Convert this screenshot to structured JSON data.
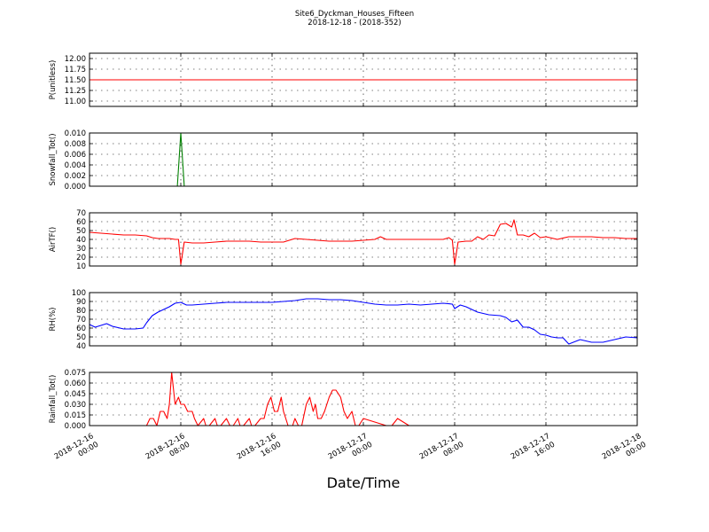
{
  "title": "Site6_Dyckman_Houses_Fifteen",
  "subtitle": "2018-12-18 - (2018-352)",
  "xlabel": "Date/Time",
  "x_ticks": [
    {
      "t": 0,
      "line1": "2018-12-16",
      "line2": "00:00"
    },
    {
      "t": 8,
      "line1": "2018-12-16",
      "line2": "08:00"
    },
    {
      "t": 16,
      "line1": "2018-12-16",
      "line2": "16:00"
    },
    {
      "t": 24,
      "line1": "2018-12-17",
      "line2": "00:00"
    },
    {
      "t": 32,
      "line1": "2018-12-17",
      "line2": "08:00"
    },
    {
      "t": 40,
      "line1": "2018-12-17",
      "line2": "16:00"
    },
    {
      "t": 48,
      "line1": "2018-12-18",
      "line2": "00:00"
    }
  ],
  "chart_data": [
    {
      "type": "line",
      "ylabel": "P(unitless)",
      "ylim": [
        10.875,
        12.125
      ],
      "yticks": [
        "11.00",
        "11.25",
        "11.50",
        "11.75",
        "12.00"
      ],
      "color": "#ff0000",
      "series": [
        {
          "x": [
            0,
            48
          ],
          "y": [
            11.5,
            11.5
          ]
        }
      ]
    },
    {
      "type": "line",
      "ylabel": "Snowfall_Tot()",
      "ylim": [
        0,
        0.01
      ],
      "yticks": [
        "0.000",
        "0.002",
        "0.004",
        "0.006",
        "0.008",
        "0.010"
      ],
      "color": "#008000",
      "series": [
        {
          "x": [
            0,
            7.7,
            8.0,
            8.3,
            48
          ],
          "y": [
            0,
            0,
            0.01,
            0,
            0
          ]
        }
      ]
    },
    {
      "type": "line",
      "ylabel": "AirTF()",
      "ylim": [
        10,
        70
      ],
      "yticks": [
        "10",
        "20",
        "30",
        "40",
        "50",
        "60",
        "70"
      ],
      "color": "#ff0000",
      "series": [
        {
          "x": [
            0,
            1,
            2,
            3,
            4,
            5,
            5.5,
            6,
            7,
            7.5,
            7.8,
            8.0,
            8.3,
            9,
            10,
            11,
            12,
            13,
            14,
            15,
            16,
            17,
            18,
            19,
            20,
            21,
            22,
            23,
            24,
            25,
            25.5,
            26,
            27,
            28,
            29,
            30,
            31,
            31.5,
            31.8,
            32.0,
            32.3,
            33,
            33.5,
            34,
            34.5,
            35,
            35.5,
            36,
            36.5,
            37,
            37.2,
            37.5,
            38,
            38.5,
            39,
            39.5,
            40,
            41,
            42,
            43,
            44,
            45,
            46,
            47,
            48
          ],
          "y": [
            48,
            47,
            46,
            45,
            45,
            44,
            42,
            41,
            41,
            40,
            40,
            12,
            37,
            36,
            36,
            37,
            38,
            38,
            38,
            37,
            37,
            37,
            41,
            40,
            39,
            38,
            38,
            38,
            39,
            40,
            43,
            40,
            40,
            40,
            40,
            40,
            40,
            42,
            39,
            12,
            37,
            38,
            38,
            43,
            40,
            45,
            44,
            57,
            58,
            54,
            62,
            45,
            45,
            43,
            47,
            42,
            43,
            40,
            43,
            43,
            43,
            42,
            42,
            41,
            41
          ]
        }
      ]
    },
    {
      "type": "line",
      "ylabel": "RH(%)",
      "ylim": [
        40,
        100
      ],
      "yticks": [
        "40",
        "50",
        "60",
        "70",
        "80",
        "90",
        "100"
      ],
      "color": "#0000ff",
      "series": [
        {
          "x": [
            0,
            0.5,
            1,
            1.5,
            2,
            3,
            4,
            4.7,
            5,
            5.5,
            6,
            7,
            7.5,
            8,
            8.5,
            9,
            10,
            11,
            12,
            13,
            14,
            15,
            16,
            17,
            18,
            19,
            20,
            21,
            22,
            23,
            24,
            25,
            26,
            27,
            28,
            29,
            30,
            31,
            31.8,
            32,
            32.5,
            33,
            34,
            35,
            36,
            36.5,
            37,
            37.5,
            38,
            38.5,
            39,
            39.5,
            40,
            40.5,
            41,
            41.5,
            42,
            43,
            44,
            45,
            46,
            47,
            48
          ],
          "y": [
            64,
            61,
            63,
            65,
            62,
            59,
            59,
            60,
            66,
            74,
            78,
            84,
            88,
            89,
            86,
            86,
            87,
            88,
            89,
            89,
            89,
            89,
            89,
            90,
            91,
            93,
            93,
            92,
            92,
            91,
            89,
            87,
            86,
            86,
            87,
            86,
            87,
            88,
            87,
            82,
            86,
            84,
            78,
            75,
            74,
            72,
            67,
            69,
            61,
            61,
            58,
            53,
            52,
            50,
            49,
            49,
            42,
            47,
            44,
            44,
            47,
            50,
            49
          ]
        }
      ]
    },
    {
      "type": "line",
      "ylabel": "Rainfall_Tot()",
      "ylim": [
        0,
        0.075
      ],
      "yticks": [
        "0.000",
        "0.015",
        "0.030",
        "0.045",
        "0.060",
        "0.075"
      ],
      "color": "#ff0000",
      "series": [
        {
          "x": [
            0,
            5,
            5.3,
            5.6,
            5.9,
            6.2,
            6.5,
            6.8,
            7.0,
            7.2,
            7.5,
            7.8,
            8.0,
            8.3,
            8.6,
            9.0,
            9.2,
            9.5,
            10,
            10.2,
            10.5,
            11,
            11.2,
            11.5,
            12,
            12.3,
            12.6,
            13,
            13.2,
            13.5,
            14,
            14.2,
            14.5,
            15,
            15.3,
            15.6,
            15.9,
            16.2,
            16.5,
            16.8,
            17,
            17.4,
            17.8,
            18,
            18.3,
            18.6,
            19,
            19.3,
            19.6,
            19.8,
            20,
            20.3,
            20.6,
            21,
            21.3,
            21.6,
            22,
            22.3,
            22.6,
            23,
            23.3,
            23.6,
            24,
            26,
            26.5,
            27,
            28,
            48
          ],
          "y": [
            0,
            0,
            0.01,
            0.01,
            0,
            0.02,
            0.02,
            0.01,
            0.03,
            0.075,
            0.03,
            0.04,
            0.03,
            0.03,
            0.02,
            0.02,
            0.01,
            0,
            0.01,
            0,
            0,
            0.01,
            0,
            0,
            0.01,
            0,
            0,
            0.01,
            0,
            0,
            0.01,
            0,
            0,
            0.01,
            0.01,
            0.03,
            0.04,
            0.02,
            0.02,
            0.04,
            0.02,
            0,
            0,
            0.01,
            0,
            0,
            0.03,
            0.04,
            0.02,
            0.03,
            0.01,
            0.01,
            0.02,
            0.04,
            0.05,
            0.05,
            0.04,
            0.02,
            0.01,
            0.02,
            0,
            0,
            0.01,
            0,
            0,
            0.01,
            0,
            0
          ]
        }
      ]
    }
  ]
}
